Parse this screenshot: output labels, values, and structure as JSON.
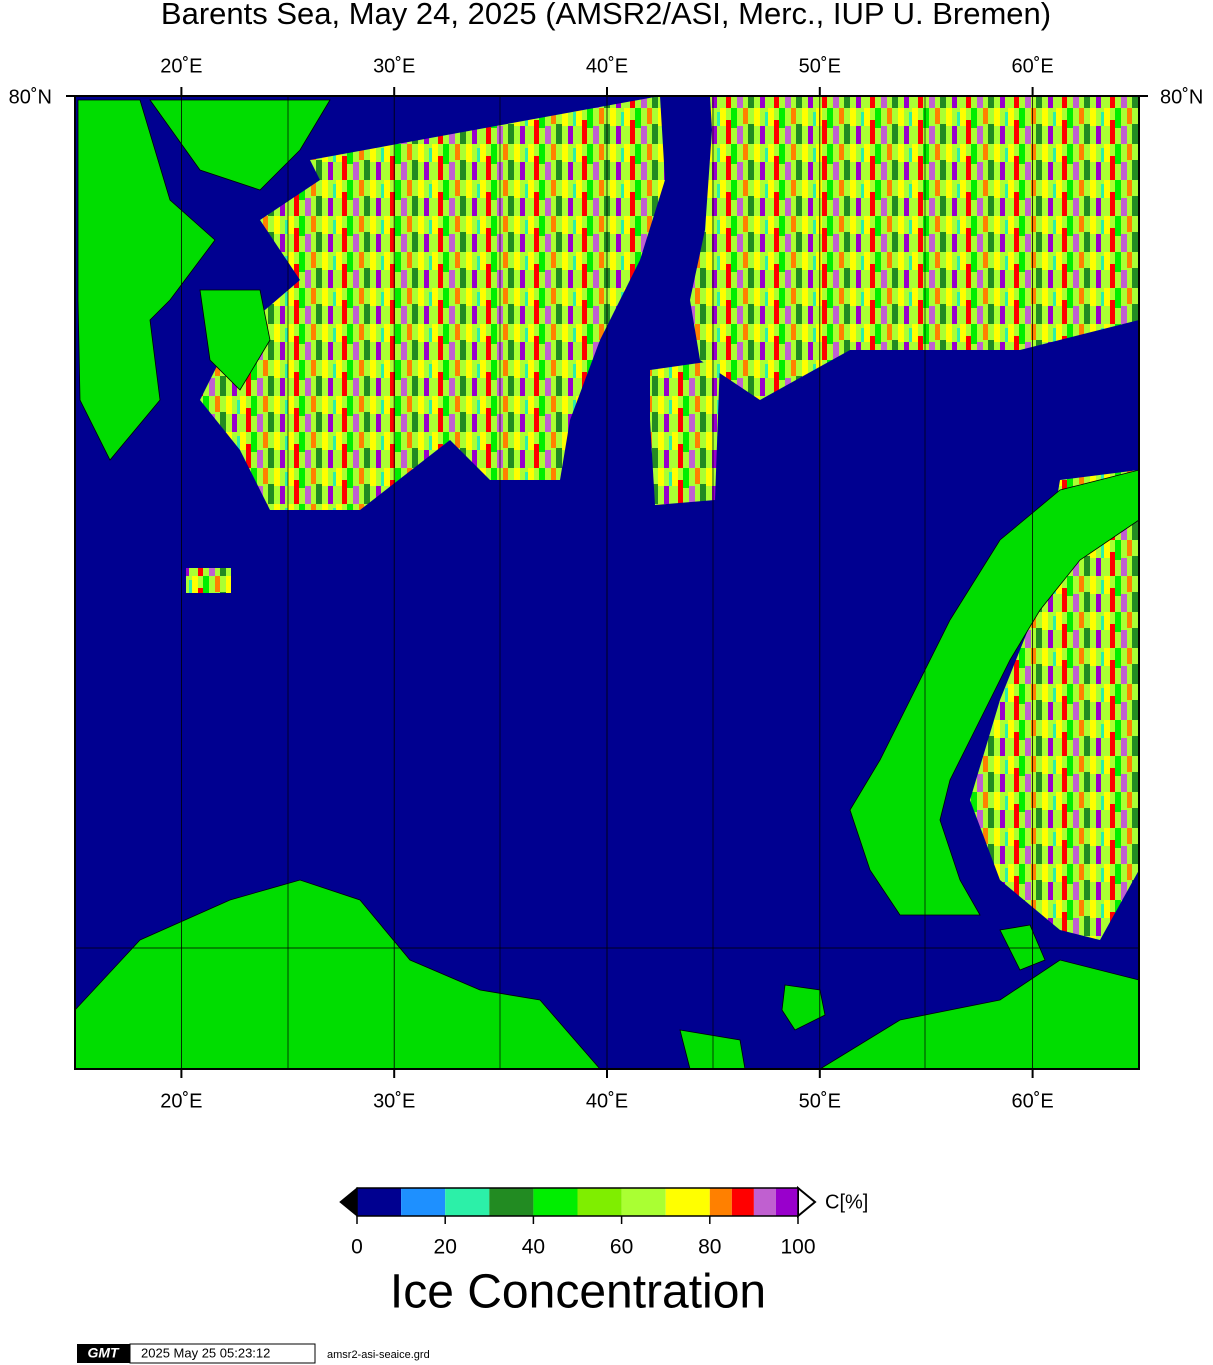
{
  "title": "Barents Sea, May 24, 2025 (AMSR2/ASI, Merc., IUP U. Bremen)",
  "map": {
    "xlim": [
      15,
      65
    ],
    "xticks": [
      {
        "value": 20,
        "label": "20˚E"
      },
      {
        "value": 30,
        "label": "30˚E"
      },
      {
        "value": 40,
        "label": "40˚E"
      },
      {
        "value": 50,
        "label": "50˚E"
      },
      {
        "value": 60,
        "label": "60˚E"
      }
    ],
    "lat_label": "80˚N"
  },
  "colorbar": {
    "lim": [
      0,
      100
    ],
    "ticks": [
      0,
      20,
      40,
      60,
      80,
      100
    ],
    "bounds": [
      0,
      10,
      20,
      30,
      40,
      50,
      60,
      70,
      80,
      85,
      90,
      95,
      100
    ],
    "colors": [
      "#000090",
      "#1e90ff",
      "#2cf0a8",
      "#228b22",
      "#00ee00",
      "#7fee00",
      "#aaff33",
      "#ffff00",
      "#ff8000",
      "#ff0000",
      "#c060d0",
      "#9900cc"
    ],
    "unit": "C[%]",
    "label": "Ice Concentration"
  },
  "footer": {
    "logo": "GMT",
    "timestamp": "2025 May 25 05:23:12",
    "file": "amsr2-asi-seaice.grd"
  }
}
